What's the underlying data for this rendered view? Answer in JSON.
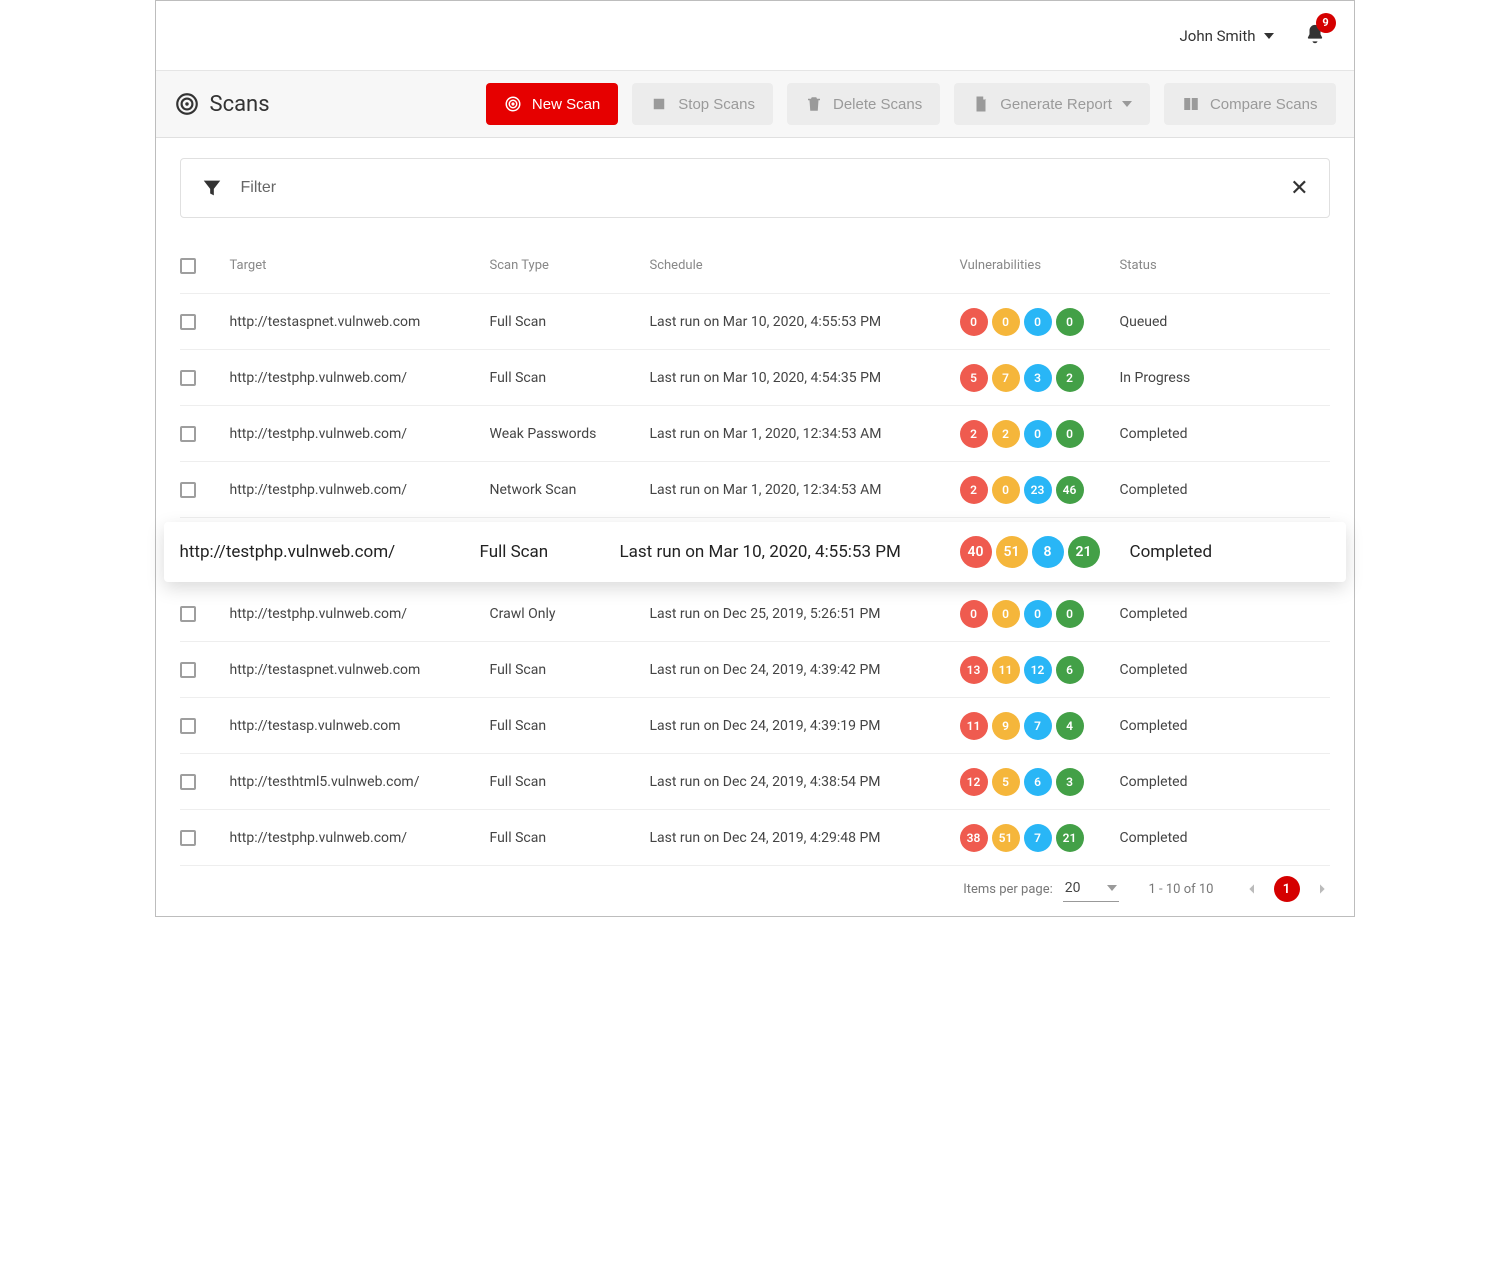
{
  "colors": {
    "primary": "#e60000",
    "disabled_bg": "#ececec",
    "disabled_text": "#9a9a9a",
    "text": "#333333",
    "muted": "#888888",
    "row_border": "#eeeeee",
    "vuln": {
      "critical": "#ef5b4f",
      "high": "#f5b63b",
      "medium": "#29b6f6",
      "low": "#43a047"
    }
  },
  "header": {
    "user_name": "John Smith",
    "notifications": "9"
  },
  "page": {
    "title": "Scans"
  },
  "toolbar": {
    "new_scan": "New Scan",
    "stop_scans": "Stop Scans",
    "delete_scans": "Delete Scans",
    "generate_report": "Generate Report",
    "compare_scans": "Compare Scans"
  },
  "filter": {
    "placeholder": "Filter"
  },
  "table": {
    "columns": {
      "target": "Target",
      "scan_type": "Scan Type",
      "schedule": "Schedule",
      "vulnerabilities": "Vulnerabilities",
      "status": "Status"
    },
    "rows": [
      {
        "target": "http://testaspnet.vulnweb.com",
        "scan_type": "Full Scan",
        "schedule": "Last run on Mar 10, 2020, 4:55:53 PM",
        "vulns": [
          "0",
          "0",
          "0",
          "0"
        ],
        "status": "Queued"
      },
      {
        "target": "http://testphp.vulnweb.com/",
        "scan_type": "Full Scan",
        "schedule": "Last run on Mar 10, 2020, 4:54:35 PM",
        "vulns": [
          "5",
          "7",
          "3",
          "2"
        ],
        "status": "In Progress"
      },
      {
        "target": "http://testphp.vulnweb.com/",
        "scan_type": "Weak Passwords",
        "schedule": "Last run on Mar 1, 2020, 12:34:53 AM",
        "vulns": [
          "2",
          "2",
          "0",
          "0"
        ],
        "status": "Completed"
      },
      {
        "target": "http://testphp.vulnweb.com/",
        "scan_type": "Network Scan",
        "schedule": "Last run on Mar 1, 2020, 12:34:53 AM",
        "vulns": [
          "2",
          "0",
          "23",
          "46"
        ],
        "status": "Completed"
      },
      {
        "target": "http://testphp.vulnweb.com/",
        "scan_type": "Full Scan",
        "schedule": "Last run on Mar 10, 2020, 4:55:53 PM",
        "vulns": [
          "40",
          "51",
          "8",
          "21"
        ],
        "status": "Completed",
        "highlighted": true
      },
      {
        "target": "http://testphp.vulnweb.com/",
        "scan_type": "Crawl Only",
        "schedule": "Last run on Dec 25, 2019, 5:26:51 PM",
        "vulns": [
          "0",
          "0",
          "0",
          "0"
        ],
        "status": "Completed"
      },
      {
        "target": "http://testaspnet.vulnweb.com",
        "scan_type": "Full Scan",
        "schedule": "Last run on Dec 24, 2019, 4:39:42 PM",
        "vulns": [
          "13",
          "11",
          "12",
          "6"
        ],
        "status": "Completed"
      },
      {
        "target": "http://testasp.vulnweb.com",
        "scan_type": "Full Scan",
        "schedule": "Last run on Dec 24, 2019, 4:39:19 PM",
        "vulns": [
          "11",
          "9",
          "7",
          "4"
        ],
        "status": "Completed"
      },
      {
        "target": "http://testhtml5.vulnweb.com/",
        "scan_type": "Full Scan",
        "schedule": "Last run on Dec 24, 2019, 4:38:54 PM",
        "vulns": [
          "12",
          "5",
          "6",
          "3"
        ],
        "status": "Completed"
      },
      {
        "target": "http://testphp.vulnweb.com/",
        "scan_type": "Full Scan",
        "schedule": "Last run on Dec 24, 2019, 4:29:48 PM",
        "vulns": [
          "38",
          "51",
          "7",
          "21"
        ],
        "status": "Completed"
      }
    ]
  },
  "pagination": {
    "items_per_page_label": "Items per page:",
    "items_per_page_value": "20",
    "range": "1 - 10 of 10",
    "current_page": "1"
  }
}
